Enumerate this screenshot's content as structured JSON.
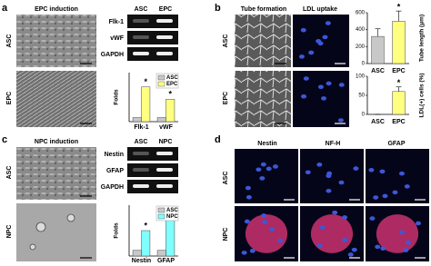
{
  "panels": {
    "a": {
      "label": "a",
      "title": "EPC induction",
      "rows": [
        "ASC",
        "EPC"
      ],
      "gel": {
        "columns": [
          "ASC",
          "EPC"
        ],
        "rows": [
          "Flk-1",
          "vWF",
          "GAPDH"
        ]
      }
    },
    "b": {
      "label": "b",
      "columns": [
        "Tube formation",
        "LDL uptake"
      ],
      "rows": [
        "ASC",
        "EPC"
      ]
    },
    "c": {
      "label": "c",
      "title": "NPC induction",
      "rows": [
        "ASC",
        "NPC"
      ],
      "gel": {
        "columns": [
          "ASC",
          "NPC"
        ],
        "rows": [
          "Nestin",
          "GFAP",
          "GAPDH"
        ]
      }
    },
    "d": {
      "label": "d",
      "columns": [
        "Nestin",
        "NF-H",
        "GFAP"
      ],
      "rows": [
        "ASC",
        "NPC"
      ]
    }
  },
  "chart_data": [
    {
      "type": "bar",
      "ylabel": "Folds",
      "annotation": "*",
      "categories": [
        "Flk-1",
        "vWF"
      ],
      "ylim": [
        0,
        12
      ],
      "legend": "upper right",
      "series": [
        {
          "name": "ASC",
          "color": "#c8c8c8",
          "values": [
            1,
            1
          ]
        },
        {
          "name": "EPC",
          "color": "#ffff80",
          "values": [
            8.5,
            5.5
          ]
        }
      ]
    },
    {
      "type": "bar",
      "ylabel": "Tube length (μm)",
      "annotation": "*",
      "categories": [
        "ASC",
        "EPC"
      ],
      "values": [
        320,
        500
      ],
      "errors": [
        90,
        120
      ],
      "colors": [
        "#c8c8c8",
        "#ffff80"
      ],
      "ylim": [
        0,
        600
      ],
      "yticks": [
        0,
        200,
        400,
        600
      ]
    },
    {
      "type": "bar",
      "ylabel": "LDL(+) cells (%)",
      "annotation": "*",
      "categories": [
        "ASC",
        "EPC"
      ],
      "values": [
        0,
        60
      ],
      "errors": [
        0,
        12
      ],
      "colors": [
        "#c8c8c8",
        "#ffff80"
      ],
      "ylim": [
        0,
        100
      ],
      "yticks": [
        0,
        50,
        100
      ]
    },
    {
      "type": "bar",
      "ylabel": "Folds",
      "annotation": "*",
      "categories": [
        "Nestin",
        "GFAP"
      ],
      "ylim": [
        0,
        9
      ],
      "legend": "upper right",
      "series": [
        {
          "name": "ASC",
          "color": "#c8c8c8",
          "values": [
            1,
            1
          ]
        },
        {
          "name": "NPC",
          "color": "#80ffff",
          "values": [
            4.5,
            7
          ]
        }
      ]
    }
  ]
}
